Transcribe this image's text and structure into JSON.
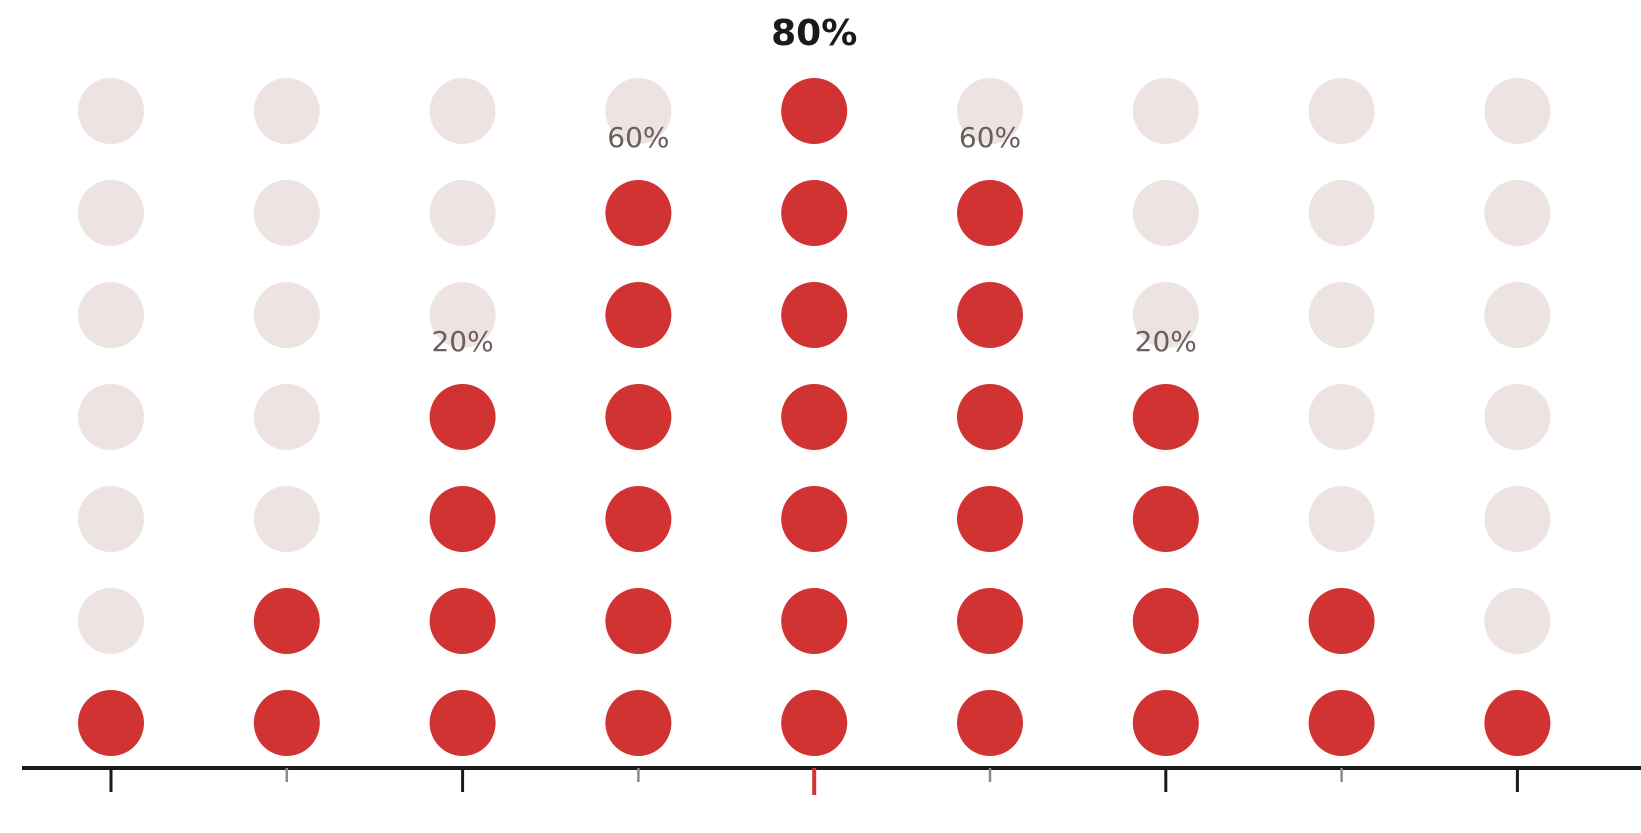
{
  "chart_data": {
    "type": "dot-matrix",
    "columns": 9,
    "rows_per_column": 7,
    "filled_dots": [
      1,
      2,
      4,
      6,
      7,
      6,
      4,
      2,
      1
    ],
    "labels": [
      "",
      "",
      "20%",
      "60%",
      "80%",
      "60%",
      "20%",
      "",
      ""
    ],
    "highlight_column_index": 4,
    "x_ticks": [
      "major",
      "minor",
      "major",
      "minor",
      "highlight",
      "minor",
      "major",
      "minor",
      "major"
    ]
  },
  "colors": {
    "filled": "#d13333",
    "empty": "#ede3e3",
    "axis": "#1a1a1a",
    "minor_tick": "#8a8a8a",
    "highlight_tick": "#d13333",
    "label": "#6b5e5e",
    "highlight_label": "#1a1a1a"
  }
}
